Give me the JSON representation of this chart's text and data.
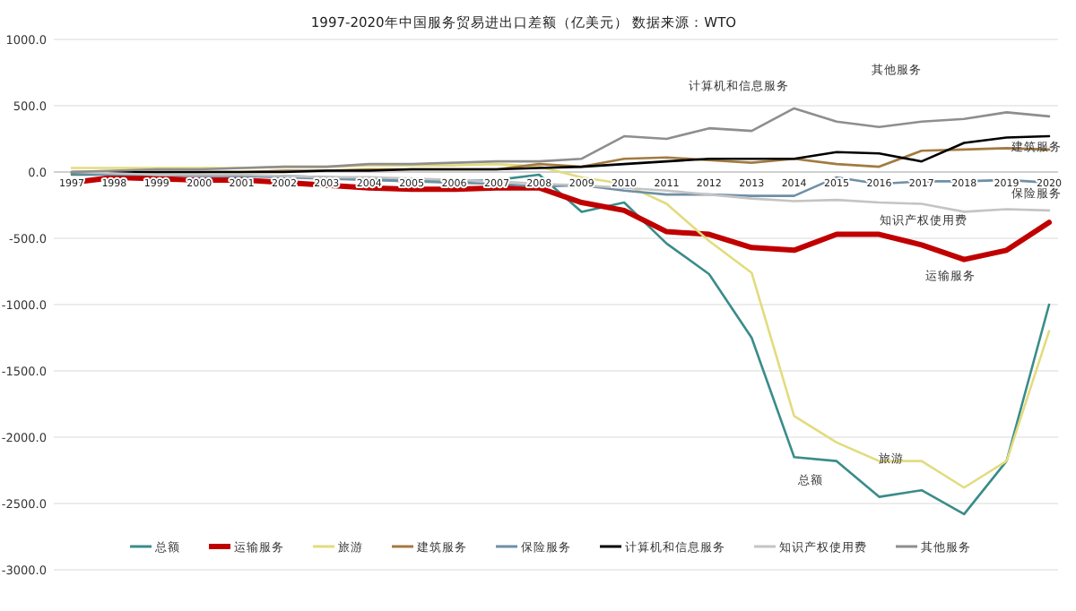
{
  "chart_data": {
    "type": "line",
    "title": "1997-2020年中国服务贸易进出口差额（亿美元）    数据来源：WTO",
    "categories": [
      "1997",
      "1998",
      "1999",
      "2000",
      "2001",
      "2002",
      "2003",
      "2004",
      "2005",
      "2006",
      "2007",
      "2008",
      "2009",
      "2010",
      "2011",
      "2012",
      "2013",
      "2014",
      "2015",
      "2016",
      "2017",
      "2018",
      "2019",
      "2020"
    ],
    "series": [
      {
        "name": "总额",
        "color": "#3a8c8a",
        "values": [
          -20,
          -20,
          -20,
          -20,
          -30,
          -30,
          -40,
          -50,
          -60,
          -70,
          -60,
          -20,
          -300,
          -230,
          -540,
          -770,
          -1250,
          -2150,
          -2180,
          -2450,
          -2400,
          -2580,
          -2180,
          -1000
        ]
      },
      {
        "name": "运输服务",
        "color": "#c00000",
        "values": [
          -80,
          -40,
          -50,
          -60,
          -60,
          -80,
          -100,
          -120,
          -130,
          -130,
          -120,
          -120,
          -230,
          -290,
          -450,
          -470,
          -570,
          -590,
          -470,
          -470,
          -550,
          -660,
          -590,
          -380
        ]
      },
      {
        "name": "旅游",
        "color": "#e2dc7e",
        "values": [
          30,
          30,
          30,
          30,
          30,
          40,
          40,
          50,
          50,
          50,
          60,
          40,
          -40,
          -90,
          -240,
          -520,
          -760,
          -1840,
          -2040,
          -2180,
          -2180,
          -2380,
          -2180,
          -1200
        ]
      },
      {
        "name": "建筑服务",
        "color": "#a27a40",
        "values": [
          -10,
          0,
          0,
          0,
          0,
          10,
          10,
          20,
          20,
          20,
          20,
          60,
          40,
          100,
          110,
          90,
          70,
          100,
          60,
          40,
          160,
          170,
          180,
          170
        ]
      },
      {
        "name": "保险服务",
        "color": "#6f8fa6",
        "values": [
          -10,
          -20,
          -20,
          -30,
          -30,
          -40,
          -50,
          -60,
          -70,
          -80,
          -90,
          -110,
          -100,
          -140,
          -170,
          -170,
          -180,
          -180,
          -40,
          -90,
          -70,
          -70,
          -60,
          -80
        ]
      },
      {
        "name": "计算机和信息服务",
        "color": "#000000",
        "values": [
          0,
          0,
          0,
          0,
          0,
          0,
          10,
          10,
          20,
          20,
          20,
          30,
          40,
          60,
          80,
          100,
          100,
          100,
          150,
          140,
          80,
          220,
          260,
          270
        ]
      },
      {
        "name": "知识产权使用费",
        "color": "#c4c4c4",
        "values": [
          0,
          -10,
          -20,
          -20,
          -20,
          -30,
          -40,
          -40,
          -50,
          -60,
          -70,
          -90,
          -100,
          -120,
          -140,
          -170,
          -200,
          -220,
          -210,
          -230,
          -240,
          -300,
          -280,
          -290
        ]
      },
      {
        "name": "其他服务",
        "color": "#8e8e8e",
        "values": [
          0,
          10,
          20,
          20,
          30,
          40,
          40,
          60,
          60,
          70,
          80,
          80,
          100,
          270,
          250,
          330,
          310,
          480,
          380,
          340,
          380,
          400,
          450,
          420
        ]
      }
    ],
    "ylim": [
      -3000,
      1000
    ],
    "yticks": [
      {
        "value": -3000,
        "label": "-3000.0"
      },
      {
        "value": -2500,
        "label": "-2500.0"
      },
      {
        "value": -2000,
        "label": "-2000.0"
      },
      {
        "value": -1500,
        "label": "-1500.0"
      },
      {
        "value": -1000,
        "label": "-1000.0"
      },
      {
        "value": -500,
        "label": "-500.0"
      },
      {
        "value": 0,
        "label": "0.0"
      },
      {
        "value": 500,
        "label": "500.0"
      },
      {
        "value": 1000,
        "label": "1000.0"
      }
    ],
    "grid": "y",
    "legend": "bottom",
    "annotations": [
      "计算机和信息服务",
      "其他服务",
      "建筑服务",
      "保险服务",
      "知识产权使用费",
      "运输服务",
      "旅游",
      "总额"
    ]
  }
}
